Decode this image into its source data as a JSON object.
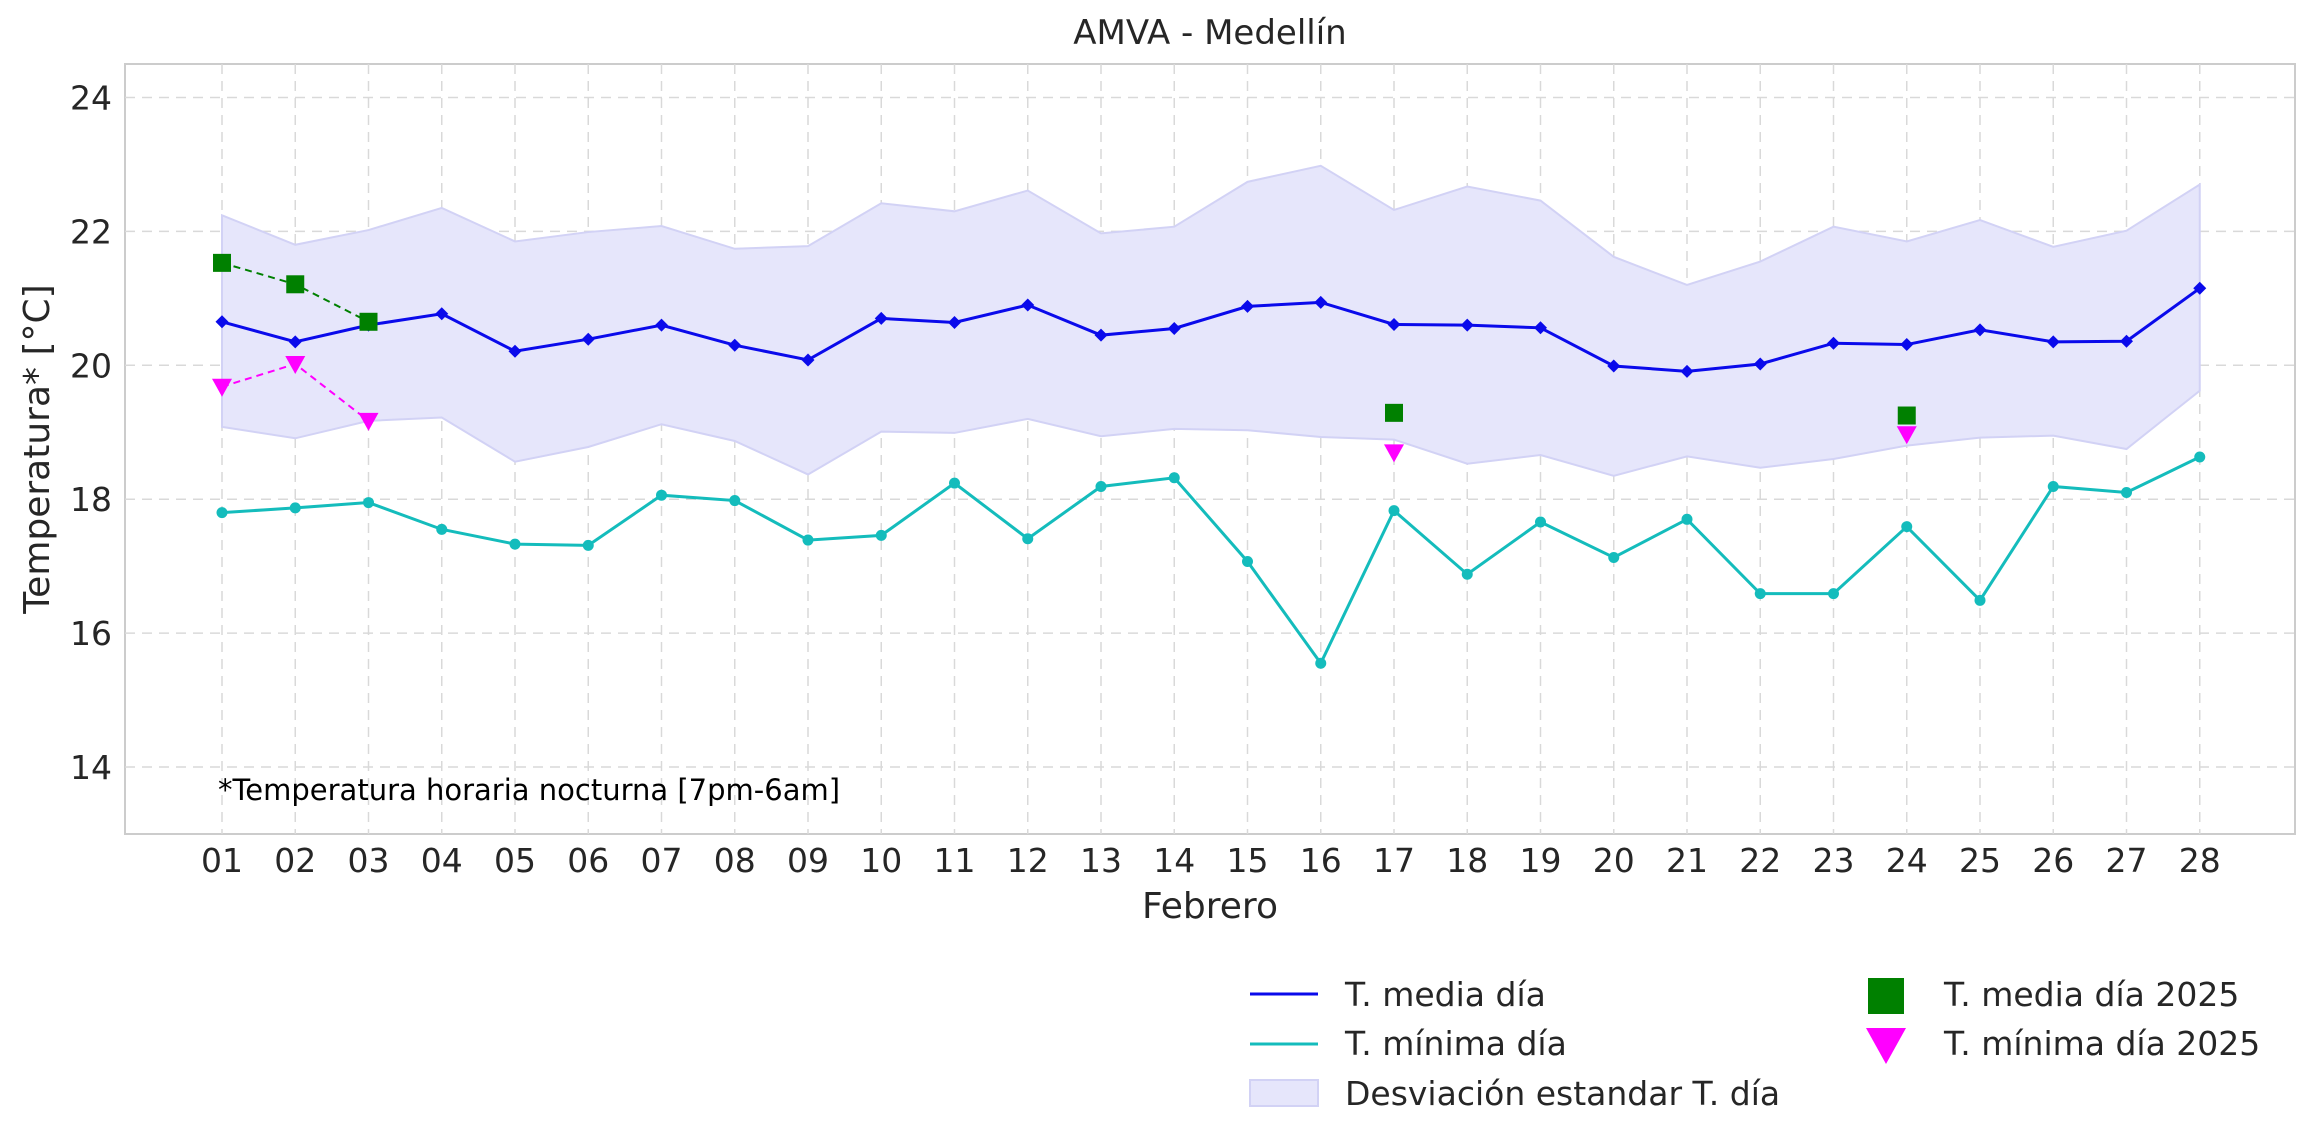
{
  "colors": {
    "mean": "#0a0aeb",
    "min": "#14bcbc",
    "band": "#e6e6fb",
    "band_edge": "#d2d2f5",
    "mean2025": "#008000",
    "min2025": "#ff00ff",
    "grid": "#d9d9d9",
    "frame": "#cccccc"
  },
  "chart_data": {
    "type": "line",
    "title": "AMVA - Medellín",
    "xlabel": "Febrero",
    "ylabel": "Temperatura* [°C]",
    "annotation": "*Temperatura horaria nocturna [7pm-6am]",
    "ylim": [
      13,
      24.5
    ],
    "yticks": [
      14,
      16,
      18,
      20,
      22,
      24
    ],
    "grid": true,
    "legend_position": "bottom-right",
    "categories": [
      "01",
      "02",
      "03",
      "04",
      "05",
      "06",
      "07",
      "08",
      "09",
      "10",
      "11",
      "12",
      "13",
      "14",
      "15",
      "16",
      "17",
      "18",
      "19",
      "20",
      "21",
      "22",
      "23",
      "24",
      "25",
      "26",
      "27",
      "28"
    ],
    "series": [
      {
        "name": "T. media día",
        "kind": "line",
        "color": "#0a0aeb",
        "marker": "diamond",
        "values": [
          20.65,
          20.35,
          20.6,
          20.77,
          20.21,
          20.39,
          20.6,
          20.3,
          20.08,
          20.7,
          20.64,
          20.9,
          20.45,
          20.55,
          20.88,
          20.94,
          20.61,
          20.6,
          20.56,
          19.99,
          19.91,
          20.02,
          20.33,
          20.31,
          20.53,
          20.35,
          20.36,
          21.15
        ]
      },
      {
        "name": "T. mínima día",
        "kind": "line",
        "color": "#14bcbc",
        "marker": "circle",
        "values": [
          17.8,
          17.87,
          17.95,
          17.55,
          17.33,
          17.31,
          18.06,
          17.98,
          17.39,
          17.46,
          18.24,
          17.41,
          18.19,
          18.32,
          17.07,
          15.55,
          17.83,
          16.88,
          17.66,
          17.13,
          17.7,
          16.59,
          16.59,
          17.59,
          16.49,
          18.19,
          18.1,
          18.63
        ]
      },
      {
        "name": "Desviación estandar T. día",
        "kind": "band",
        "color": "#e6e6fb",
        "upper": [
          22.24,
          21.8,
          22.02,
          22.35,
          21.85,
          21.99,
          22.08,
          21.74,
          21.78,
          22.42,
          22.3,
          22.61,
          21.97,
          22.07,
          22.74,
          22.98,
          22.32,
          22.67,
          22.46,
          21.62,
          21.2,
          21.55,
          22.07,
          21.85,
          22.17,
          21.77,
          22.01,
          22.7
        ],
        "lower": [
          19.08,
          18.91,
          19.17,
          19.22,
          18.56,
          18.78,
          19.12,
          18.87,
          18.37,
          19.01,
          18.99,
          19.2,
          18.94,
          19.05,
          19.03,
          18.93,
          18.89,
          18.53,
          18.66,
          18.35,
          18.64,
          18.47,
          18.6,
          18.8,
          18.92,
          18.95,
          18.75,
          19.62
        ]
      },
      {
        "name": "T. media día 2025",
        "kind": "marker",
        "marker": "square",
        "color": "#008000",
        "points": [
          {
            "x": "01",
            "y": 21.53
          },
          {
            "x": "02",
            "y": 21.21
          },
          {
            "x": "03",
            "y": 20.65
          },
          {
            "x": "17",
            "y": 19.29
          },
          {
            "x": "24",
            "y": 19.25
          }
        ],
        "dashed_segment": [
          "01",
          "02",
          "03"
        ]
      },
      {
        "name": "T. mínima día 2025",
        "kind": "marker",
        "marker": "triangle-down",
        "color": "#ff00ff",
        "points": [
          {
            "x": "01",
            "y": 19.68
          },
          {
            "x": "02",
            "y": 20.02
          },
          {
            "x": "03",
            "y": 19.17
          },
          {
            "x": "17",
            "y": 18.7
          },
          {
            "x": "24",
            "y": 18.97
          }
        ],
        "dashed_segment": [
          "01",
          "02",
          "03"
        ]
      }
    ]
  }
}
